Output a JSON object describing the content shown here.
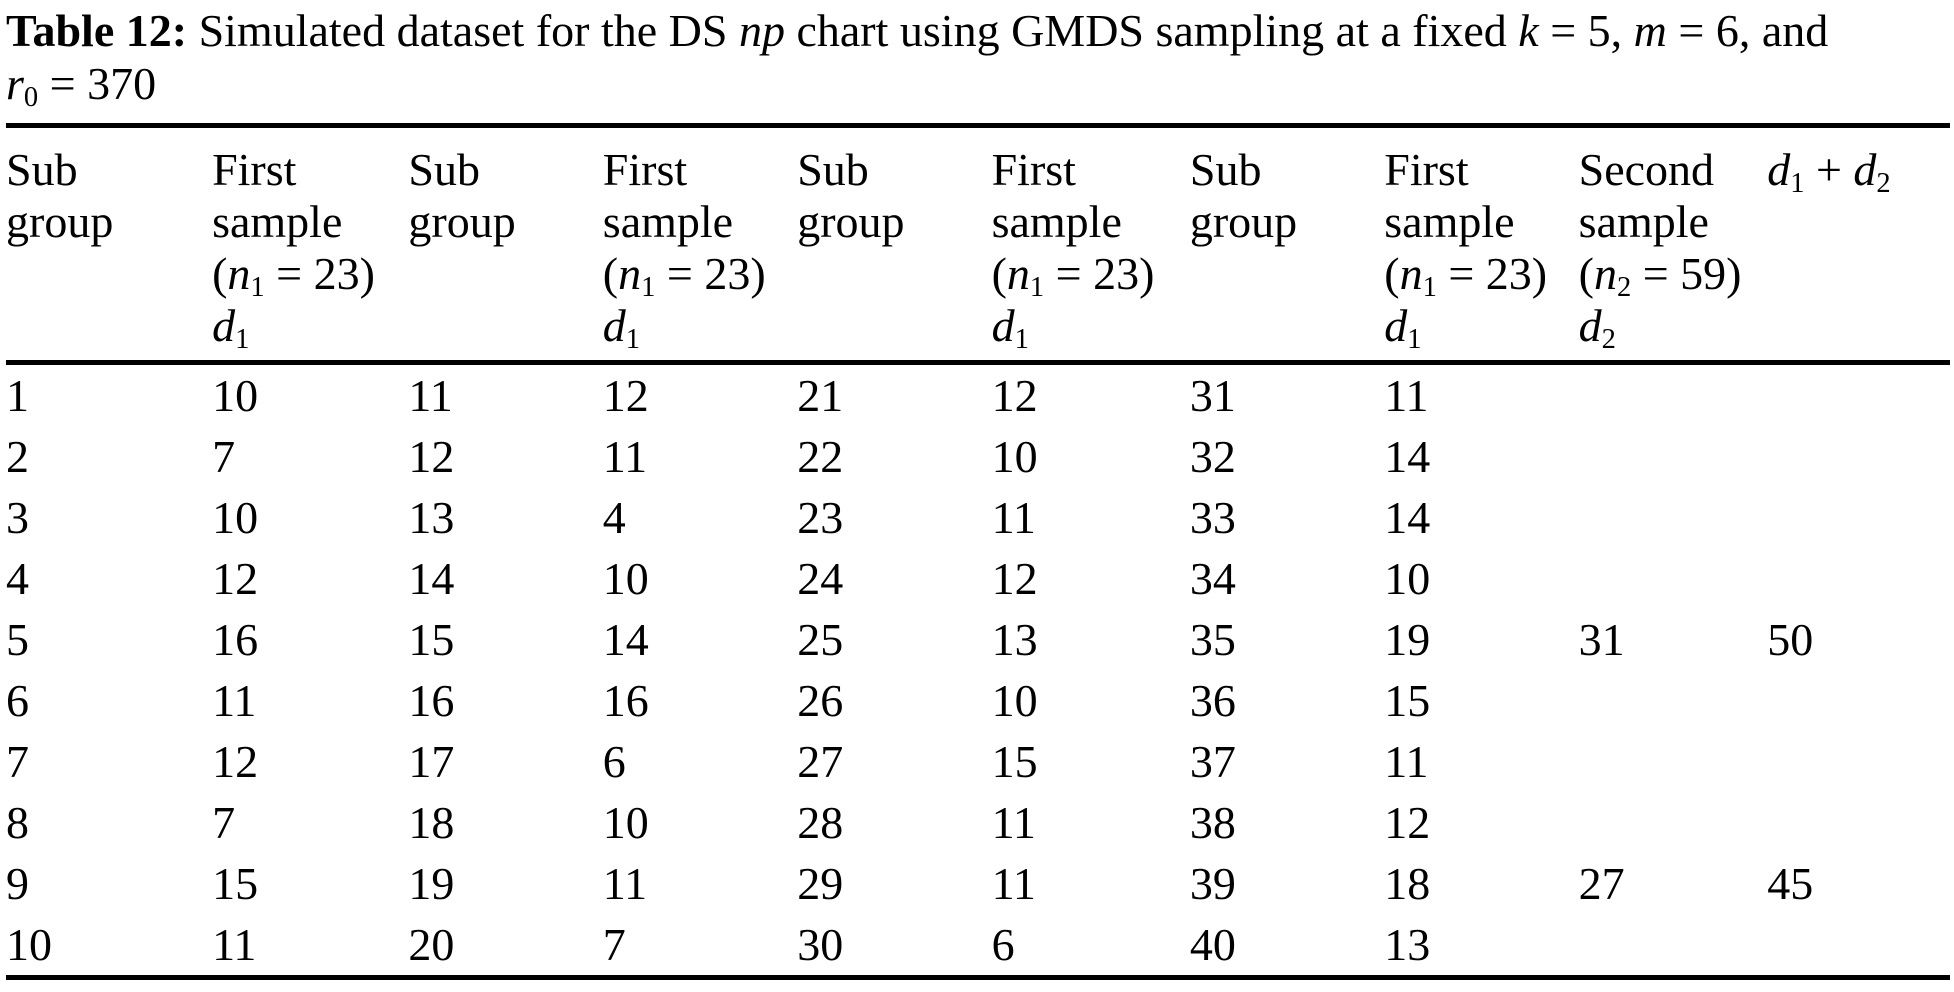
{
  "title": {
    "segments": [
      [
        "Table 12:",
        "b"
      ],
      [
        " Simulated dataset for the DS ",
        ""
      ],
      [
        "np",
        "i"
      ],
      [
        " chart using GMDS sampling at a fixed ",
        ""
      ],
      [
        "k",
        "i"
      ],
      [
        " = 5, ",
        ""
      ],
      [
        "m",
        "i"
      ],
      [
        " = 6, and",
        ""
      ],
      [
        "",
        "br"
      ],
      [
        "r",
        "i"
      ],
      [
        "0",
        "sub"
      ],
      [
        " = 370",
        ""
      ]
    ]
  },
  "table": {
    "columns": [
      {
        "id": "subgroup-a",
        "lines": [
          [
            [
              "Sub",
              ""
            ]
          ],
          [
            [
              "group",
              ""
            ]
          ]
        ]
      },
      {
        "id": "first-sample-a",
        "lines": [
          [
            [
              "First",
              ""
            ]
          ],
          [
            [
              "sample",
              ""
            ]
          ],
          [
            [
              "(",
              ""
            ],
            [
              "n",
              "i"
            ],
            [
              "1",
              "sub"
            ],
            [
              " = 23)",
              ""
            ]
          ],
          [
            [
              "d",
              "i"
            ],
            [
              "1",
              "sub"
            ]
          ]
        ]
      },
      {
        "id": "subgroup-b",
        "lines": [
          [
            [
              "Sub",
              ""
            ]
          ],
          [
            [
              "group",
              ""
            ]
          ]
        ]
      },
      {
        "id": "first-sample-b",
        "lines": [
          [
            [
              "First",
              ""
            ]
          ],
          [
            [
              "sample",
              ""
            ]
          ],
          [
            [
              "(",
              ""
            ],
            [
              "n",
              "i"
            ],
            [
              "1",
              "sub"
            ],
            [
              " = 23)",
              ""
            ]
          ],
          [
            [
              "d",
              "i"
            ],
            [
              "1",
              "sub"
            ]
          ]
        ]
      },
      {
        "id": "subgroup-c",
        "lines": [
          [
            [
              "Sub",
              ""
            ]
          ],
          [
            [
              "group",
              ""
            ]
          ]
        ]
      },
      {
        "id": "first-sample-c",
        "lines": [
          [
            [
              "First",
              ""
            ]
          ],
          [
            [
              "sample",
              ""
            ]
          ],
          [
            [
              "(",
              ""
            ],
            [
              "n",
              "i"
            ],
            [
              "1",
              "sub"
            ],
            [
              " = 23)",
              ""
            ]
          ],
          [
            [
              "d",
              "i"
            ],
            [
              "1",
              "sub"
            ]
          ]
        ]
      },
      {
        "id": "subgroup-d",
        "lines": [
          [
            [
              "Sub",
              ""
            ]
          ],
          [
            [
              "group",
              ""
            ]
          ]
        ]
      },
      {
        "id": "first-sample-d",
        "lines": [
          [
            [
              "First",
              ""
            ]
          ],
          [
            [
              "sample",
              ""
            ]
          ],
          [
            [
              "(",
              ""
            ],
            [
              "n",
              "i"
            ],
            [
              "1",
              "sub"
            ],
            [
              " = 23)",
              ""
            ]
          ],
          [
            [
              "d",
              "i"
            ],
            [
              "1",
              "sub"
            ]
          ]
        ]
      },
      {
        "id": "second-sample",
        "lines": [
          [
            [
              "Second",
              ""
            ]
          ],
          [
            [
              "sample",
              ""
            ]
          ],
          [
            [
              "(",
              ""
            ],
            [
              "n",
              "i"
            ],
            [
              "2",
              "sub"
            ],
            [
              " = 59)",
              ""
            ]
          ],
          [
            [
              "d",
              "i"
            ],
            [
              "2",
              "sub"
            ]
          ]
        ]
      },
      {
        "id": "d1-plus-d2",
        "lines": [
          [
            [
              "d",
              "i"
            ],
            [
              "1",
              "sub"
            ],
            [
              " + ",
              ""
            ],
            [
              "d",
              "i"
            ],
            [
              "2",
              "sub"
            ]
          ]
        ]
      }
    ],
    "rows": [
      [
        "1",
        "10",
        "11",
        "12",
        "21",
        "12",
        "31",
        "11",
        "",
        ""
      ],
      [
        "2",
        "7",
        "12",
        "11",
        "22",
        "10",
        "32",
        "14",
        "",
        ""
      ],
      [
        "3",
        "10",
        "13",
        "4",
        "23",
        "11",
        "33",
        "14",
        "",
        ""
      ],
      [
        "4",
        "12",
        "14",
        "10",
        "24",
        "12",
        "34",
        "10",
        "",
        ""
      ],
      [
        "5",
        "16",
        "15",
        "14",
        "25",
        "13",
        "35",
        "19",
        "31",
        "50"
      ],
      [
        "6",
        "11",
        "16",
        "16",
        "26",
        "10",
        "36",
        "15",
        "",
        ""
      ],
      [
        "7",
        "12",
        "17",
        "6",
        "27",
        "15",
        "37",
        "11",
        "",
        ""
      ],
      [
        "8",
        "7",
        "18",
        "10",
        "28",
        "11",
        "38",
        "12",
        "",
        ""
      ],
      [
        "9",
        "15",
        "19",
        "11",
        "29",
        "11",
        "39",
        "18",
        "27",
        "45"
      ],
      [
        "10",
        "11",
        "20",
        "7",
        "30",
        "6",
        "40",
        "13",
        "",
        ""
      ]
    ]
  },
  "chart_data": {
    "type": "table",
    "title": "Table 12: Simulated dataset for the DS np chart using GMDS sampling at a fixed k = 5, m = 6, and r0 = 370",
    "columns": [
      "Sub group",
      "First sample (n1 = 23) d1",
      "Sub group",
      "First sample (n1 = 23) d1",
      "Sub group",
      "First sample (n1 = 23) d1",
      "Sub group",
      "First sample (n1 = 23) d1",
      "Second sample (n2 = 59) d2",
      "d1 + d2"
    ],
    "subgroup_d1": {
      "1": 10,
      "2": 7,
      "3": 10,
      "4": 12,
      "5": 16,
      "6": 11,
      "7": 12,
      "8": 7,
      "9": 15,
      "10": 11,
      "11": 12,
      "12": 11,
      "13": 4,
      "14": 10,
      "15": 14,
      "16": 16,
      "17": 6,
      "18": 10,
      "19": 11,
      "20": 7,
      "21": 12,
      "22": 10,
      "23": 11,
      "24": 12,
      "25": 13,
      "26": 10,
      "27": 15,
      "28": 11,
      "29": 11,
      "30": 6,
      "31": 11,
      "32": 14,
      "33": 14,
      "34": 10,
      "35": 19,
      "36": 15,
      "37": 11,
      "38": 12,
      "39": 18,
      "40": 13
    },
    "second_sample_d2": {
      "35": 31,
      "39": 27
    },
    "d1_plus_d2": {
      "35": 50,
      "39": 45
    }
  }
}
